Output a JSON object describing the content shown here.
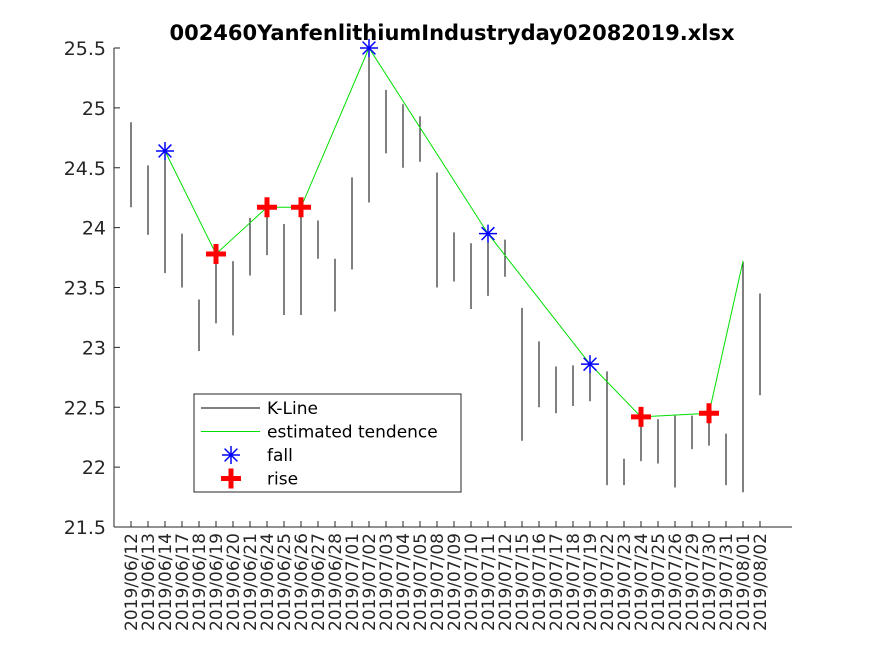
{
  "chart_data": {
    "type": "candlestick",
    "title": "002460YanfenlithiumIndustryday02082019.xlsx",
    "xlabel": "",
    "ylabel": "",
    "ylim": [
      21.5,
      25.5
    ],
    "yticks": [
      "21.5",
      "22",
      "22.5",
      "23",
      "23.5",
      "24",
      "24.5",
      "25",
      "25.5"
    ],
    "categories": [
      "2019/06/12",
      "2019/06/13",
      "2019/06/14",
      "2019/06/17",
      "2019/06/18",
      "2019/06/19",
      "2019/06/20",
      "2019/06/21",
      "2019/06/24",
      "2019/06/25",
      "2019/06/26",
      "2019/06/27",
      "2019/06/28",
      "2019/07/01",
      "2019/07/02",
      "2019/07/03",
      "2019/07/04",
      "2019/07/05",
      "2019/07/08",
      "2019/07/09",
      "2019/07/10",
      "2019/07/11",
      "2019/07/12",
      "2019/07/15",
      "2019/07/16",
      "2019/07/17",
      "2019/07/18",
      "2019/07/19",
      "2019/07/22",
      "2019/07/23",
      "2019/07/24",
      "2019/07/25",
      "2019/07/26",
      "2019/07/29",
      "2019/07/30",
      "2019/07/31",
      "2019/08/01",
      "2019/08/02"
    ],
    "kline": [
      {
        "low": 24.17,
        "high": 24.88
      },
      {
        "low": 23.94,
        "high": 24.52
      },
      {
        "low": 23.62,
        "high": 24.62
      },
      {
        "low": 23.5,
        "high": 23.95
      },
      {
        "low": 22.97,
        "high": 23.4
      },
      {
        "low": 23.2,
        "high": 23.85
      },
      {
        "low": 23.1,
        "high": 23.72
      },
      {
        "low": 23.6,
        "high": 24.08
      },
      {
        "low": 23.77,
        "high": 24.2
      },
      {
        "low": 23.27,
        "high": 24.03
      },
      {
        "low": 23.27,
        "high": 24.18
      },
      {
        "low": 23.74,
        "high": 24.06
      },
      {
        "low": 23.3,
        "high": 23.74
      },
      {
        "low": 23.65,
        "high": 24.42
      },
      {
        "low": 24.21,
        "high": 25.5
      },
      {
        "low": 24.62,
        "high": 25.15
      },
      {
        "low": 24.5,
        "high": 25.03
      },
      {
        "low": 24.55,
        "high": 24.93
      },
      {
        "low": 23.5,
        "high": 24.46
      },
      {
        "low": 23.55,
        "high": 23.96
      },
      {
        "low": 23.32,
        "high": 23.87
      },
      {
        "low": 23.43,
        "high": 23.96
      },
      {
        "low": 23.59,
        "high": 23.9
      },
      {
        "low": 22.22,
        "high": 23.33
      },
      {
        "low": 22.5,
        "high": 23.05
      },
      {
        "low": 22.45,
        "high": 22.84
      },
      {
        "low": 22.51,
        "high": 22.85
      },
      {
        "low": 22.55,
        "high": 22.87
      },
      {
        "low": 21.85,
        "high": 22.8
      },
      {
        "low": 21.85,
        "high": 22.07
      },
      {
        "low": 22.05,
        "high": 22.45
      },
      {
        "low": 22.03,
        "high": 22.4
      },
      {
        "low": 21.83,
        "high": 22.43
      },
      {
        "low": 22.15,
        "high": 22.43
      },
      {
        "low": 22.18,
        "high": 22.5
      },
      {
        "low": 21.85,
        "high": 22.28
      },
      {
        "low": 21.79,
        "high": 23.72
      },
      {
        "low": 22.6,
        "high": 23.45
      }
    ],
    "series": [
      {
        "name": "estimated tendence",
        "color": "#00e000",
        "points": [
          {
            "x": "2019/06/14",
            "y": 24.64
          },
          {
            "x": "2019/06/19",
            "y": 23.78
          },
          {
            "x": "2019/06/24",
            "y": 24.17
          },
          {
            "x": "2019/06/26",
            "y": 24.17
          },
          {
            "x": "2019/07/02",
            "y": 25.5
          },
          {
            "x": "2019/07/11",
            "y": 23.95
          },
          {
            "x": "2019/07/19",
            "y": 22.86
          },
          {
            "x": "2019/07/24",
            "y": 22.42
          },
          {
            "x": "2019/07/30",
            "y": 22.45
          },
          {
            "x": "2019/08/01",
            "y": 23.72
          }
        ]
      },
      {
        "name": "fall",
        "color": "#0000ff",
        "marker": "asterisk",
        "points": [
          {
            "x": "2019/06/14",
            "y": 24.64
          },
          {
            "x": "2019/07/02",
            "y": 25.5
          },
          {
            "x": "2019/07/11",
            "y": 23.95
          },
          {
            "x": "2019/07/19",
            "y": 22.86
          }
        ]
      },
      {
        "name": "rise",
        "color": "#ff0000",
        "marker": "plus",
        "points": [
          {
            "x": "2019/06/19",
            "y": 23.78
          },
          {
            "x": "2019/06/24",
            "y": 24.17
          },
          {
            "x": "2019/06/26",
            "y": 24.17
          },
          {
            "x": "2019/07/24",
            "y": 22.42
          },
          {
            "x": "2019/07/30",
            "y": 22.45
          }
        ]
      }
    ],
    "legend": {
      "position": "lower-left",
      "entries": [
        {
          "label": "K-Line",
          "color": "#000000",
          "marker": "line"
        },
        {
          "label": "estimated tendence",
          "color": "#00e000",
          "marker": "line"
        },
        {
          "label": "fall",
          "color": "#0000ff",
          "marker": "asterisk"
        },
        {
          "label": "rise",
          "color": "#ff0000",
          "marker": "plus"
        }
      ]
    },
    "grid": false
  }
}
